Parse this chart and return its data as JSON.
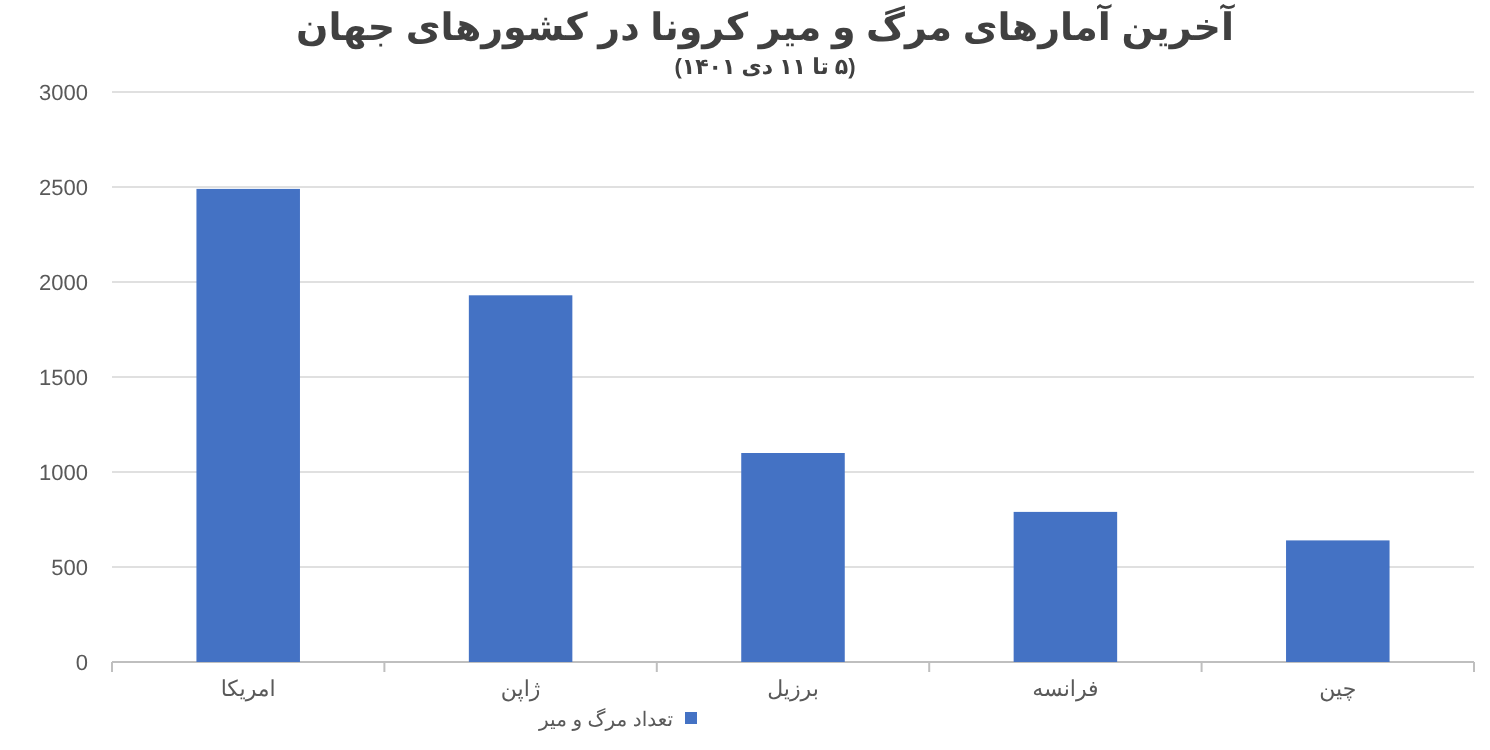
{
  "chart_data": {
    "type": "bar",
    "title": "آخرین آمارهای  مرگ و میر کرونا در کشورهای جهان",
    "subtitle": "(۵ تا ۱۱ دی ۱۴۰۱)",
    "categories": [
      "امریکا",
      "ژاپن",
      "برزیل",
      "فرانسه",
      "چین"
    ],
    "series": [
      {
        "name": "تعداد مرگ و میر",
        "color": "#4472c4",
        "values": [
          2490,
          1930,
          1100,
          790,
          640
        ]
      }
    ],
    "ylim": [
      0,
      3000
    ],
    "yticks": [
      0,
      500,
      1000,
      1500,
      2000,
      2500,
      3000
    ],
    "grid": "y",
    "legend": "bottom"
  }
}
